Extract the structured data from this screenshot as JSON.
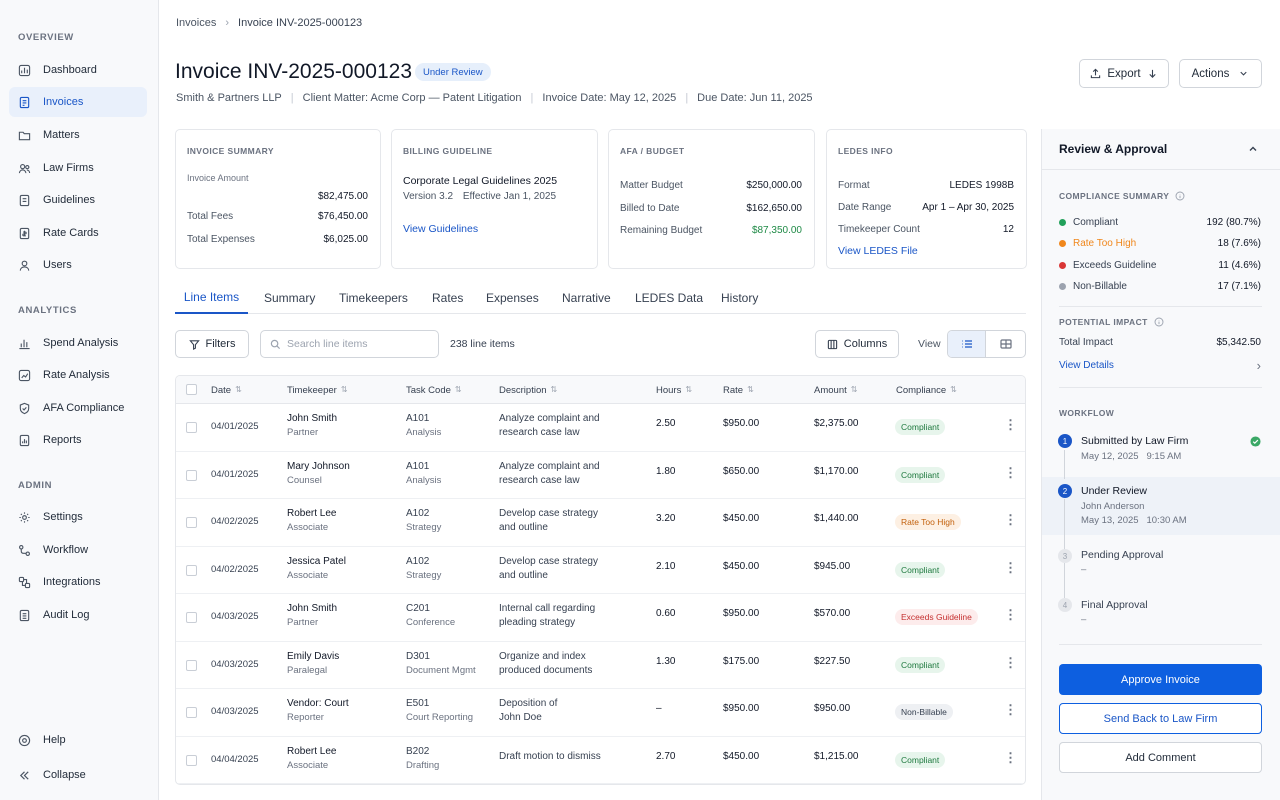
{
  "sidebar": {
    "overview_label": "OVERVIEW",
    "analytics_label": "ANALYTICS",
    "admin_label": "ADMIN",
    "items": {
      "dashboard": "Dashboard",
      "invoices": "Invoices",
      "matters": "Matters",
      "law_firms": "Law Firms",
      "guidelines": "Guidelines",
      "rate_cards": "Rate Cards",
      "users": "Users",
      "spend_analysis": "Spend Analysis",
      "rate_analysis": "Rate Analysis",
      "afa_compliance": "AFA Compliance",
      "reports": "Reports",
      "settings": "Settings",
      "workflow": "Workflow",
      "integrations": "Integrations",
      "audit_log": "Audit Log",
      "help": "Help",
      "collapse": "Collapse"
    }
  },
  "breadcrumb": {
    "parent": "Invoices",
    "current": "Invoice INV-2025-000123"
  },
  "header": {
    "title": "Invoice INV-2025-000123",
    "status": "Under Review",
    "law_firm": "Smith & Partners LLP",
    "client_matter": "Client Matter: Acme Corp — Patent Litigation",
    "invoice_date": "Invoice Date: May 12, 2025",
    "due_date": "Due Date: Jun 11, 2025",
    "export_label": "Export",
    "actions_label": "Actions"
  },
  "cards": {
    "summary": {
      "title": "INVOICE SUMMARY",
      "rows": [
        {
          "label": "Invoice Amount",
          "value": "$82,475.00"
        },
        {
          "label": "Total Fees",
          "value": "$76,450.00"
        },
        {
          "label": "Total Expenses",
          "value": "$6,025.00"
        }
      ]
    },
    "guideline": {
      "title": "BILLING GUIDELINE",
      "name": "Corporate Legal Guidelines 2025",
      "version": "Version 3.2",
      "effective": "Effective Jan 1, 2025",
      "link": "View Guidelines"
    },
    "budget": {
      "title": "AFA / BUDGET",
      "rows": [
        {
          "label": "Matter Budget",
          "value": "$250,000.00"
        },
        {
          "label": "Billed to Date",
          "value": "$162,650.00"
        },
        {
          "label": "Remaining Budget",
          "value": "$87,350.00"
        }
      ]
    },
    "ledes": {
      "title": "LEDES INFO",
      "rows": [
        {
          "label": "Format",
          "value": "LEDES 1998B"
        },
        {
          "label": "Date Range",
          "value": "Apr 1 – Apr 30, 2025"
        },
        {
          "label": "Timekeeper Count",
          "value": "12"
        }
      ],
      "link": "View LEDES File"
    }
  },
  "tabs": [
    "Line Items",
    "Summary",
    "Timekeepers",
    "Rates",
    "Expenses",
    "Narrative",
    "LEDES Data",
    "History"
  ],
  "toolbar": {
    "filters": "Filters",
    "search_placeholder": "Search line items",
    "count": "238 line items",
    "columns": "Columns",
    "view": "View"
  },
  "table": {
    "headers": [
      "Date",
      "Timekeeper",
      "Task Code",
      "Description",
      "Hours",
      "Rate",
      "Amount",
      "Compliance"
    ],
    "rows": [
      {
        "date": "04/01/2025",
        "name": "John Smith",
        "role": "Partner",
        "code": "A101",
        "code_desc": "Analysis",
        "desc1": "Analyze complaint and",
        "desc2": "research case law",
        "hours": "2.50",
        "rate": "$950.00",
        "amount": "$2,375.00",
        "compliance": "Compliant",
        "status": "ok"
      },
      {
        "date": "04/01/2025",
        "name": "Mary Johnson",
        "role": "Counsel",
        "code": "A101",
        "code_desc": "Analysis",
        "desc1": "Analyze complaint and",
        "desc2": "research case law",
        "hours": "1.80",
        "rate": "$650.00",
        "amount": "$1,170.00",
        "compliance": "Compliant",
        "status": "ok"
      },
      {
        "date": "04/02/2025",
        "name": "Robert Lee",
        "role": "Associate",
        "code": "A102",
        "code_desc": "Strategy",
        "desc1": "Develop case strategy",
        "desc2": "and outline",
        "hours": "3.20",
        "rate": "$450.00",
        "amount": "$1,440.00",
        "compliance": "Rate Too High",
        "status": "high"
      },
      {
        "date": "04/02/2025",
        "name": "Jessica Patel",
        "role": "Associate",
        "code": "A102",
        "code_desc": "Strategy",
        "desc1": "Develop case strategy",
        "desc2": "and outline",
        "hours": "2.10",
        "rate": "$450.00",
        "amount": "$945.00",
        "compliance": "Compliant",
        "status": "ok"
      },
      {
        "date": "04/03/2025",
        "name": "John Smith",
        "role": "Partner",
        "code": "C201",
        "code_desc": "Conference",
        "desc1": "Internal call regarding",
        "desc2": "pleading strategy",
        "hours": "0.60",
        "rate": "$950.00",
        "amount": "$570.00",
        "compliance": "Exceeds Guideline",
        "status": "exc"
      },
      {
        "date": "04/03/2025",
        "name": "Emily Davis",
        "role": "Paralegal",
        "code": "D301",
        "code_desc": "Document Mgmt",
        "desc1": "Organize and index",
        "desc2": "produced documents",
        "hours": "1.30",
        "rate": "$175.00",
        "amount": "$227.50",
        "compliance": "Compliant",
        "status": "ok"
      },
      {
        "date": "04/03/2025",
        "name": "Vendor: Court",
        "role": "Reporter",
        "code": "E501",
        "code_desc": "Court Reporting",
        "desc1": "Deposition of",
        "desc2": "John Doe",
        "hours": "–",
        "rate": "$950.00",
        "amount": "$950.00",
        "compliance": "Non-Billable",
        "status": "nb"
      },
      {
        "date": "04/04/2025",
        "name": "Robert Lee",
        "role": "Associate",
        "code": "B202",
        "code_desc": "Drafting",
        "desc1": "Draft motion to dismiss",
        "desc2": "",
        "hours": "2.70",
        "rate": "$450.00",
        "amount": "$1,215.00",
        "compliance": "Compliant",
        "status": "ok"
      }
    ]
  },
  "panel": {
    "title": "Review & Approval",
    "compliance_title": "COMPLIANCE SUMMARY",
    "compliance": [
      {
        "label": "Compliant",
        "value": "192 (80.7%)",
        "color": "#22a05a"
      },
      {
        "label": "Rate Too High",
        "value": "18 (7.6%)",
        "color": "#f0871c"
      },
      {
        "label": "Exceeds Guideline",
        "value": "11 (4.6%)",
        "color": "#d93636"
      },
      {
        "label": "Non-Billable",
        "value": "17 (7.1%)",
        "color": "#9ca3af"
      }
    ],
    "impact_title": "POTENTIAL IMPACT",
    "impact_label": "Total Impact",
    "impact_value": "$5,342.50",
    "view_details": "View Details",
    "workflow_title": "WORKFLOW",
    "workflow": [
      {
        "num": "1",
        "title": "Submitted by Law Firm",
        "line1": "May 12, 2025   9:15 AM",
        "line2": ""
      },
      {
        "num": "2",
        "title": "Under Review",
        "line1": "John Anderson",
        "line2": "May 13, 2025   10:30 AM"
      },
      {
        "num": "3",
        "title": "Pending Approval",
        "line1": "–",
        "line2": ""
      },
      {
        "num": "4",
        "title": "Final Approval",
        "line1": "–",
        "line2": ""
      }
    ],
    "approve": "Approve Invoice",
    "send_back": "Send Back to Law Firm",
    "comment": "Add Comment"
  },
  "colors": {
    "accent": "#1a56c7",
    "approve": "#0d5fe0",
    "positive": "#1f8a46"
  }
}
